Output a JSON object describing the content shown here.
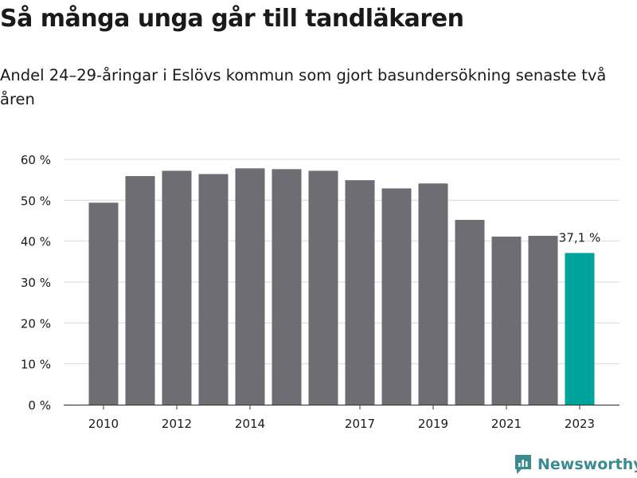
{
  "header": {
    "title": "Så många unga går till tandläkaren",
    "subtitle": "Andel 24–29-åringar i Eslövs kommun som gjort basundersökning senaste två åren"
  },
  "brand": {
    "name": "Newsworthy",
    "color": "#3a8c90",
    "icon": "newsworthy-logo-icon"
  },
  "chart_data": {
    "type": "bar",
    "categories": [
      "2010",
      "2011",
      "2012",
      "2013",
      "2014",
      "2015",
      "2016",
      "2017",
      "2018",
      "2019",
      "2020",
      "2021",
      "2022",
      "2023"
    ],
    "values": [
      49.4,
      55.9,
      57.2,
      56.4,
      57.8,
      57.6,
      57.2,
      54.9,
      52.9,
      54.1,
      45.2,
      41.1,
      41.3,
      37.1
    ],
    "ylim": [
      0,
      60
    ],
    "yticks": [
      0,
      10,
      20,
      30,
      40,
      50,
      60
    ],
    "ytick_labels": [
      "0 %",
      "10 %",
      "20 %",
      "30 %",
      "40 %",
      "50 %",
      "60 %"
    ],
    "xtick_labels": [
      "2010",
      "2012",
      "2014",
      "2017",
      "2019",
      "2021",
      "2023"
    ],
    "highlight_category": "2023",
    "highlight_label": "37,1 %",
    "bar_color": "#6e6d73",
    "highlight_color": "#00a39b",
    "grid": true
  }
}
